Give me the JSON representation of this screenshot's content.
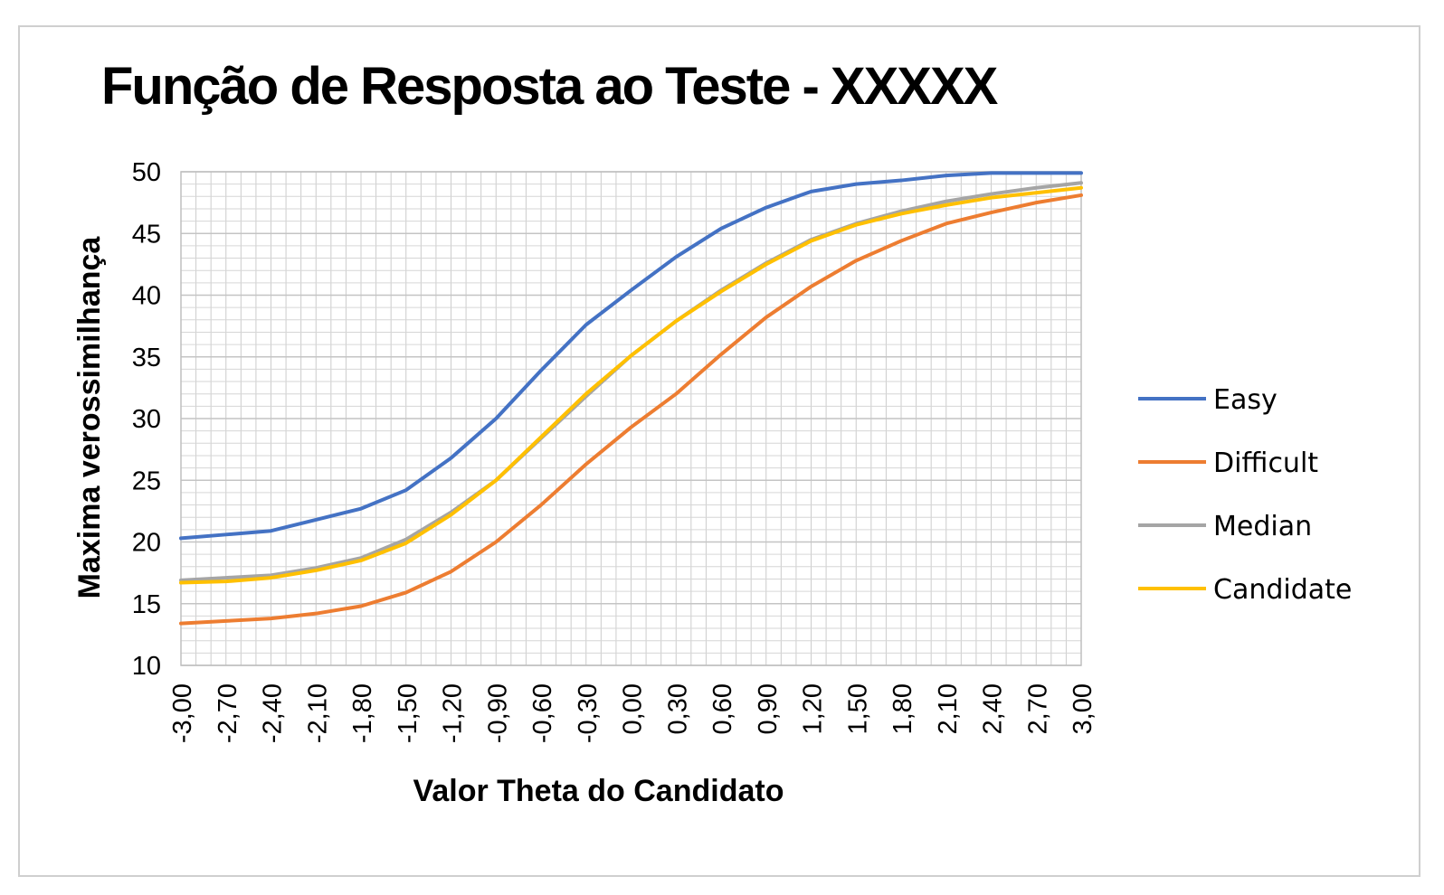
{
  "chart_data": {
    "type": "line",
    "title": "Função de Resposta ao Teste  - XXXXX",
    "xlabel": "Valor Theta do Candidato",
    "ylabel": "Maxima verossimilhança",
    "ylim": [
      10,
      50
    ],
    "yticks": [
      "10",
      "15",
      "20",
      "25",
      "30",
      "35",
      "40",
      "45",
      "50"
    ],
    "xlim": [
      -3.0,
      3.0
    ],
    "xticks": [
      {
        "value": -3.0,
        "label": "-3,00"
      },
      {
        "value": -2.7,
        "label": "-2,70"
      },
      {
        "value": -2.4,
        "label": "-2,40"
      },
      {
        "value": -2.1,
        "label": "-2,10"
      },
      {
        "value": -1.8,
        "label": "-1,80"
      },
      {
        "value": -1.5,
        "label": "-1,50"
      },
      {
        "value": -1.2,
        "label": "-1,20"
      },
      {
        "value": -0.9,
        "label": "-0,90"
      },
      {
        "value": -0.6,
        "label": "-0,60"
      },
      {
        "value": -0.3,
        "label": "-0,30"
      },
      {
        "value": 0.0,
        "label": "0,00"
      },
      {
        "value": 0.3,
        "label": "0,30"
      },
      {
        "value": 0.6,
        "label": "0,60"
      },
      {
        "value": 0.9,
        "label": "0,90"
      },
      {
        "value": 1.2,
        "label": "1,20"
      },
      {
        "value": 1.5,
        "label": "1,50"
      },
      {
        "value": 1.8,
        "label": "1,80"
      },
      {
        "value": 2.1,
        "label": "2,10"
      },
      {
        "value": 2.4,
        "label": "2,40"
      },
      {
        "value": 2.7,
        "label": "2,70"
      },
      {
        "value": 3.0,
        "label": "3,00"
      }
    ],
    "grid": true,
    "legend": "right",
    "x": [
      -3.0,
      -2.7,
      -2.4,
      -2.1,
      -1.8,
      -1.5,
      -1.2,
      -0.9,
      -0.6,
      -0.3,
      0.0,
      0.3,
      0.6,
      0.9,
      1.2,
      1.5,
      1.8,
      2.1,
      2.4,
      2.7,
      3.0
    ],
    "series": [
      {
        "name": "Easy",
        "color": "#4472C4",
        "values": [
          20.3,
          20.6,
          20.9,
          21.8,
          22.7,
          24.2,
          26.8,
          30.0,
          33.9,
          37.6,
          40.4,
          43.1,
          45.4,
          47.1,
          48.4,
          49.0,
          49.3,
          49.7,
          49.9,
          49.9,
          49.9
        ]
      },
      {
        "name": "Difficult",
        "color": "#ED7D31",
        "values": [
          13.4,
          13.6,
          13.8,
          14.2,
          14.8,
          15.9,
          17.6,
          20.0,
          23.0,
          26.3,
          29.3,
          32.0,
          35.2,
          38.2,
          40.7,
          42.8,
          44.4,
          45.8,
          46.7,
          47.5,
          48.1
        ]
      },
      {
        "name": "Median",
        "color": "#A5A5A5",
        "values": [
          16.9,
          17.1,
          17.3,
          17.9,
          18.7,
          20.2,
          22.4,
          25.0,
          28.4,
          31.8,
          35.1,
          37.9,
          40.4,
          42.6,
          44.5,
          45.8,
          46.8,
          47.6,
          48.2,
          48.7,
          49.1
        ]
      },
      {
        "name": "Candidate",
        "color": "#FFC000",
        "values": [
          16.7,
          16.8,
          17.1,
          17.7,
          18.5,
          19.9,
          22.2,
          25.0,
          28.5,
          32.0,
          35.1,
          37.9,
          40.3,
          42.5,
          44.4,
          45.7,
          46.6,
          47.3,
          47.9,
          48.3,
          48.7
        ]
      }
    ]
  }
}
